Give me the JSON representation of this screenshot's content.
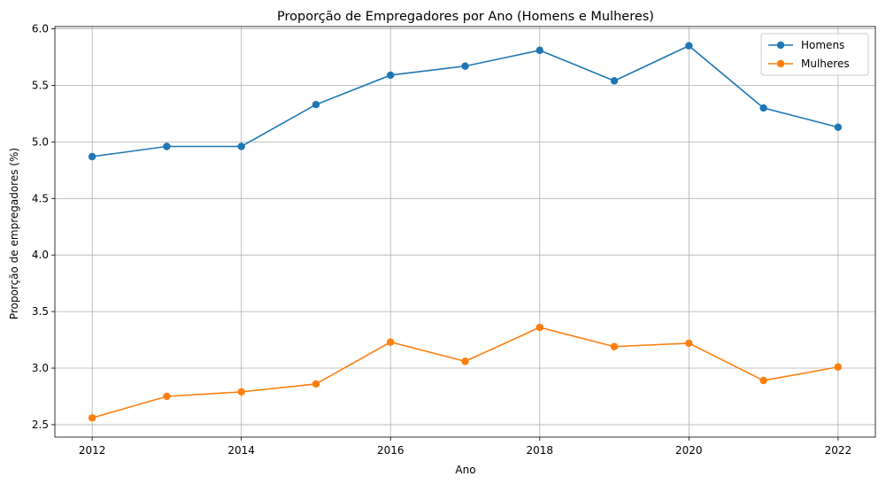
{
  "chart_data": {
    "type": "line",
    "title": "Proporção de Empregadores por Ano (Homens e Mulheres)",
    "xlabel": "Ano",
    "ylabel": "Proporção de empregadores (%)",
    "x": [
      2012,
      2013,
      2014,
      2015,
      2016,
      2017,
      2018,
      2019,
      2020,
      2021,
      2022
    ],
    "xticks": [
      "2012",
      "2014",
      "2016",
      "2018",
      "2020",
      "2022"
    ],
    "yticks": [
      "2.5",
      "3.0",
      "3.5",
      "4.0",
      "4.5",
      "5.0",
      "5.5",
      "6.0"
    ],
    "xlim": [
      2011.5,
      2022.5
    ],
    "ylim": [
      2.39,
      6.02
    ],
    "grid": true,
    "legend_position": "top-right",
    "series": [
      {
        "name": "Homens",
        "color": "#1f77b4",
        "values": [
          4.87,
          4.96,
          4.96,
          5.33,
          5.59,
          5.67,
          5.81,
          5.54,
          5.85,
          5.3,
          5.13
        ]
      },
      {
        "name": "Mulheres",
        "color": "#ff7f0e",
        "values": [
          2.56,
          2.75,
          2.79,
          2.86,
          3.23,
          3.06,
          3.36,
          3.19,
          3.22,
          2.89,
          3.01
        ]
      }
    ]
  }
}
